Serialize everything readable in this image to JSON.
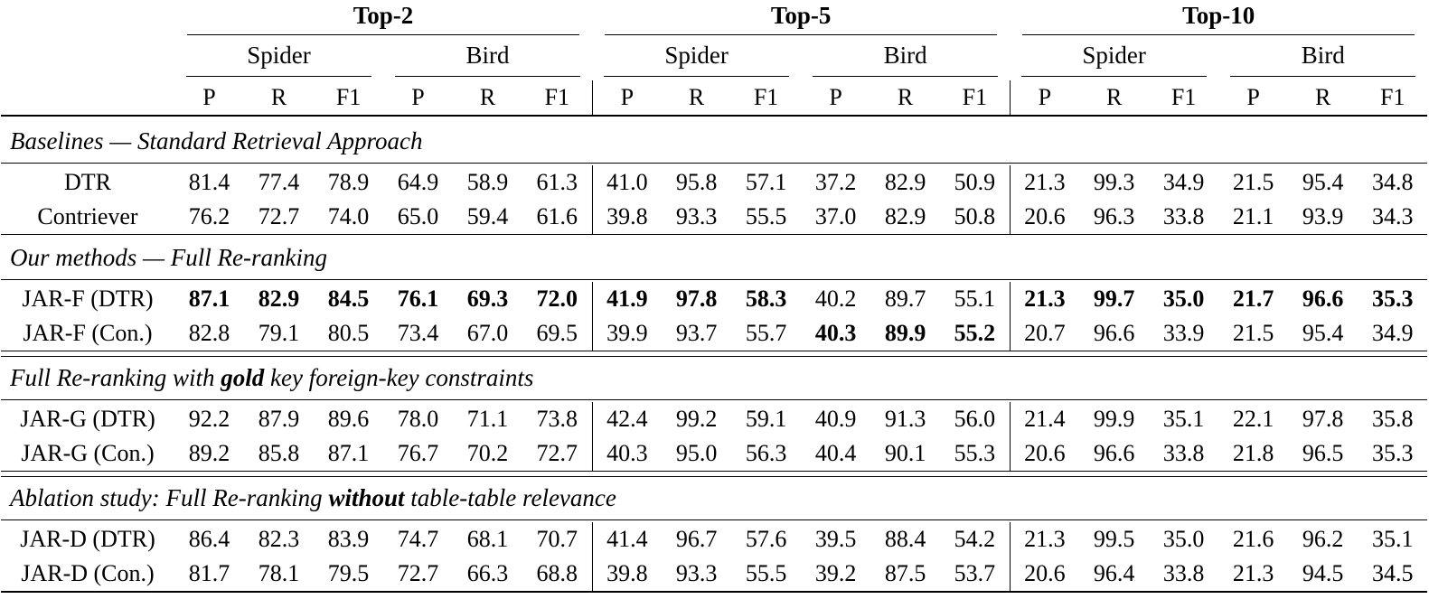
{
  "table": {
    "top_groups": [
      "Top-2",
      "Top-5",
      "Top-10"
    ],
    "datasets": [
      "Spider",
      "Bird"
    ],
    "metrics": [
      "P",
      "R",
      "F1"
    ],
    "sections": [
      {
        "separator_before": null,
        "title": [
          {
            "t": "Baselines — Standard Retrieval Approach",
            "b": false
          }
        ],
        "rows": [
          {
            "label": "DTR",
            "values": [
              "81.4",
              "77.4",
              "78.9",
              "64.9",
              "58.9",
              "61.3",
              "41.0",
              "95.8",
              "57.1",
              "37.2",
              "82.9",
              "50.9",
              "21.3",
              "99.3",
              "34.9",
              "21.5",
              "95.4",
              "34.8"
            ]
          },
          {
            "label": "Contriever",
            "values": [
              "76.2",
              "72.7",
              "74.0",
              "65.0",
              "59.4",
              "61.6",
              "39.8",
              "93.3",
              "55.5",
              "37.0",
              "82.9",
              "50.8",
              "20.6",
              "96.3",
              "33.8",
              "21.1",
              "93.9",
              "34.3"
            ]
          }
        ]
      },
      {
        "separator_before": "single",
        "title": [
          {
            "t": "Our methods — Full Re-ranking",
            "b": false
          }
        ],
        "rows": [
          {
            "label": "JAR-F (DTR)",
            "values": [
              "87.1",
              "82.9",
              "84.5",
              "76.1",
              "69.3",
              "72.0",
              "41.9",
              "97.8",
              "58.3",
              "40.2",
              "89.7",
              "55.1",
              "21.3",
              "99.7",
              "35.0",
              "21.7",
              "96.6",
              "35.3"
            ],
            "bold": [
              1,
              1,
              1,
              1,
              1,
              1,
              1,
              1,
              1,
              0,
              0,
              0,
              1,
              1,
              1,
              1,
              1,
              1
            ]
          },
          {
            "label": "JAR-F (Con.)",
            "values": [
              "82.8",
              "79.1",
              "80.5",
              "73.4",
              "67.0",
              "69.5",
              "39.9",
              "93.7",
              "55.7",
              "40.3",
              "89.9",
              "55.2",
              "20.7",
              "96.6",
              "33.9",
              "21.5",
              "95.4",
              "34.9"
            ],
            "bold": [
              0,
              0,
              0,
              0,
              0,
              0,
              0,
              0,
              0,
              1,
              1,
              1,
              0,
              0,
              0,
              0,
              0,
              0
            ]
          }
        ]
      },
      {
        "separator_before": "double",
        "title": [
          {
            "t": "Full Re-ranking with ",
            "b": false
          },
          {
            "t": "gold",
            "b": true
          },
          {
            "t": " key foreign-key constraints",
            "b": false
          }
        ],
        "rows": [
          {
            "label": "JAR-G (DTR)",
            "values": [
              "92.2",
              "87.9",
              "89.6",
              "78.0",
              "71.1",
              "73.8",
              "42.4",
              "99.2",
              "59.1",
              "40.9",
              "91.3",
              "56.0",
              "21.4",
              "99.9",
              "35.1",
              "22.1",
              "97.8",
              "35.8"
            ]
          },
          {
            "label": "JAR-G (Con.)",
            "values": [
              "89.2",
              "85.8",
              "87.1",
              "76.7",
              "70.2",
              "72.7",
              "40.3",
              "95.0",
              "56.3",
              "40.4",
              "90.1",
              "55.3",
              "20.6",
              "96.6",
              "33.8",
              "21.8",
              "96.5",
              "35.3"
            ]
          }
        ]
      },
      {
        "separator_before": "double",
        "title": [
          {
            "t": "Ablation study: Full Re-ranking ",
            "b": false
          },
          {
            "t": "without",
            "b": true
          },
          {
            "t": " table-table relevance",
            "b": false
          }
        ],
        "rows": [
          {
            "label": "JAR-D (DTR)",
            "values": [
              "86.4",
              "82.3",
              "83.9",
              "74.7",
              "68.1",
              "70.7",
              "41.4",
              "96.7",
              "57.6",
              "39.5",
              "88.4",
              "54.2",
              "21.3",
              "99.5",
              "35.0",
              "21.6",
              "96.2",
              "35.1"
            ]
          },
          {
            "label": "JAR-D (Con.)",
            "values": [
              "81.7",
              "78.1",
              "79.5",
              "72.7",
              "66.3",
              "68.8",
              "39.8",
              "93.3",
              "55.5",
              "39.2",
              "87.5",
              "53.7",
              "20.6",
              "96.4",
              "33.8",
              "21.3",
              "94.5",
              "34.5"
            ]
          }
        ]
      }
    ]
  }
}
